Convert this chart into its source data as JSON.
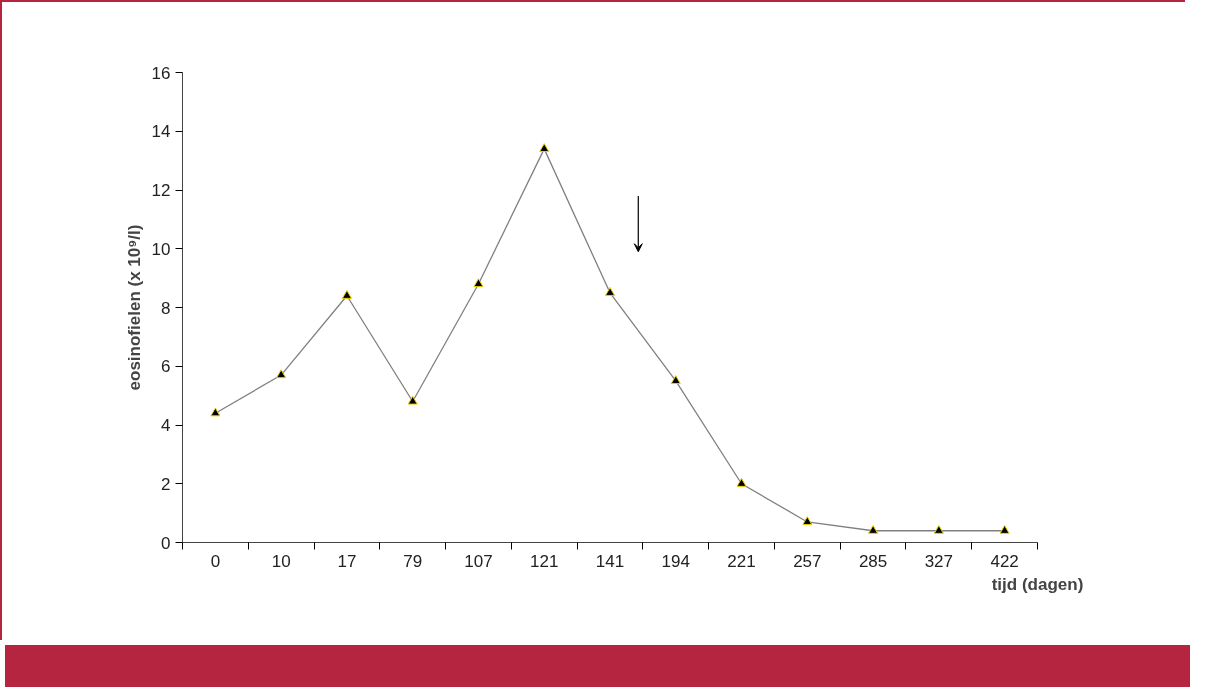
{
  "chart_data": {
    "type": "line",
    "xlabel": "tijd (dagen)",
    "ylabel": "eosinofielen (x 10⁹/l)",
    "categories": [
      "0",
      "10",
      "17",
      "79",
      "107",
      "121",
      "141",
      "194",
      "221",
      "257",
      "285",
      "327",
      "422"
    ],
    "series": [
      {
        "color": "#808080",
        "values": [
          4.4,
          5.7,
          8.4,
          4.8,
          8.8,
          13.4,
          8.5,
          5.5,
          2.0,
          0.7,
          0.4,
          0.4,
          0.4
        ]
      }
    ],
    "ylim": [
      0,
      16
    ],
    "yticks": [
      0,
      2,
      4,
      6,
      8,
      10,
      12,
      14,
      16
    ],
    "grid": false,
    "marker": "triangle",
    "line_style": "solid"
  }
}
